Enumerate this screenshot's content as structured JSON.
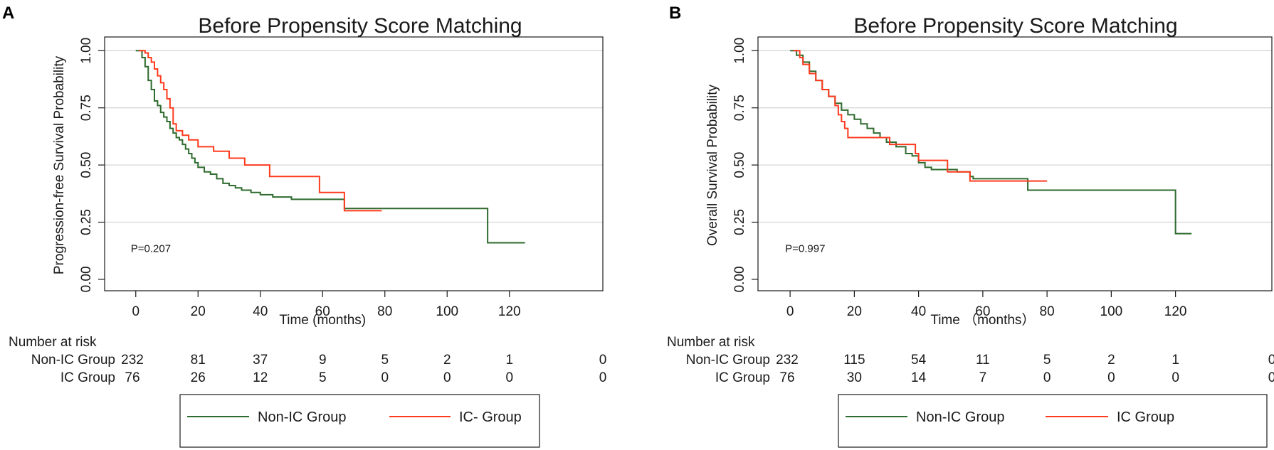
{
  "chart_data": [
    {
      "type": "line",
      "panel": "A",
      "title": "Before Propensity Score Matching",
      "xlabel": "Time (months)",
      "ylabel": "Progression-free Survival Probability",
      "xticks": [
        "0",
        "20",
        "40",
        "60",
        "80",
        "100",
        "120"
      ],
      "yticks": [
        "0.00",
        "0.25",
        "0.50",
        "0.75",
        "1.00"
      ],
      "xlim": [
        -10,
        150
      ],
      "ylim": [
        -0.05,
        1.06
      ],
      "pvalue": "P=0.207",
      "risk_title": "Number at risk",
      "risk_times": [
        0,
        20,
        40,
        60,
        80,
        100,
        120,
        150
      ],
      "risk_table": [
        {
          "label": "Non-IC Group",
          "values": [
            "232",
            "81",
            "37",
            "9",
            "5",
            "2",
            "1",
            "0"
          ]
        },
        {
          "label": "IC Group",
          "values": [
            "76",
            "26",
            "12",
            "5",
            "0",
            "0",
            "0",
            "0"
          ]
        }
      ],
      "legend": [
        "Non-IC Group",
        "IC- Group"
      ],
      "series": [
        {
          "name": "Non-IC Group",
          "color": "#2e6b2e",
          "points": [
            [
              0,
              1.0
            ],
            [
              1,
              1.0
            ],
            [
              2,
              0.97
            ],
            [
              3,
              0.93
            ],
            [
              4,
              0.87
            ],
            [
              5,
              0.83
            ],
            [
              6,
              0.78
            ],
            [
              7,
              0.76
            ],
            [
              8,
              0.73
            ],
            [
              9,
              0.71
            ],
            [
              10,
              0.69
            ],
            [
              11,
              0.66
            ],
            [
              12,
              0.64
            ],
            [
              13,
              0.62
            ],
            [
              14,
              0.61
            ],
            [
              15,
              0.59
            ],
            [
              16,
              0.57
            ],
            [
              17,
              0.55
            ],
            [
              18,
              0.53
            ],
            [
              19,
              0.51
            ],
            [
              20,
              0.49
            ],
            [
              22,
              0.47
            ],
            [
              24,
              0.46
            ],
            [
              26,
              0.44
            ],
            [
              28,
              0.42
            ],
            [
              30,
              0.41
            ],
            [
              32,
              0.4
            ],
            [
              34,
              0.39
            ],
            [
              37,
              0.38
            ],
            [
              40,
              0.37
            ],
            [
              44,
              0.36
            ],
            [
              50,
              0.35
            ],
            [
              58,
              0.35
            ],
            [
              66,
              0.35
            ],
            [
              67,
              0.31
            ],
            [
              80,
              0.31
            ],
            [
              113,
              0.31
            ],
            [
              113,
              0.16
            ],
            [
              125,
              0.16
            ]
          ]
        },
        {
          "name": "IC- Group",
          "color": "#ff3b1f",
          "points": [
            [
              1,
              1.0
            ],
            [
              3,
              0.99
            ],
            [
              4,
              0.97
            ],
            [
              5,
              0.95
            ],
            [
              6,
              0.92
            ],
            [
              7,
              0.89
            ],
            [
              8,
              0.86
            ],
            [
              9,
              0.83
            ],
            [
              10,
              0.79
            ],
            [
              11,
              0.75
            ],
            [
              12,
              0.68
            ],
            [
              13,
              0.65
            ],
            [
              15,
              0.63
            ],
            [
              17,
              0.61
            ],
            [
              20,
              0.58
            ],
            [
              25,
              0.56
            ],
            [
              30,
              0.53
            ],
            [
              35,
              0.5
            ],
            [
              43,
              0.45
            ],
            [
              59,
              0.45
            ],
            [
              59,
              0.38
            ],
            [
              67,
              0.38
            ],
            [
              67,
              0.3
            ],
            [
              79,
              0.3
            ]
          ]
        }
      ]
    },
    {
      "type": "line",
      "panel": "B",
      "title": "Before Propensity Score Matching",
      "xlabel": "Time （months）",
      "ylabel": "Overall Survival Probability",
      "xticks": [
        "0",
        "20",
        "40",
        "60",
        "80",
        "100",
        "120"
      ],
      "yticks": [
        "0.00",
        "0.25",
        "0.50",
        "0.75",
        "1.00"
      ],
      "xlim": [
        -10,
        150
      ],
      "ylim": [
        -0.05,
        1.06
      ],
      "pvalue": "P=0.997",
      "risk_title": "Number at risk",
      "risk_times": [
        0,
        20,
        40,
        60,
        80,
        100,
        120,
        150
      ],
      "risk_table": [
        {
          "label": "Non-IC Group",
          "values": [
            "232",
            "115",
            "54",
            "11",
            "5",
            "2",
            "1",
            "0"
          ]
        },
        {
          "label": "IC Group",
          "values": [
            "76",
            "30",
            "14",
            "7",
            "0",
            "0",
            "0",
            "0"
          ]
        }
      ],
      "legend": [
        "Non-IC Group",
        "IC Group"
      ],
      "series": [
        {
          "name": "Non-IC Group",
          "color": "#2e6b2e",
          "points": [
            [
              0,
              1.0
            ],
            [
              2,
              0.98
            ],
            [
              4,
              0.95
            ],
            [
              6,
              0.91
            ],
            [
              8,
              0.87
            ],
            [
              10,
              0.83
            ],
            [
              12,
              0.8
            ],
            [
              14,
              0.77
            ],
            [
              16,
              0.74
            ],
            [
              18,
              0.72
            ],
            [
              20,
              0.7
            ],
            [
              22,
              0.68
            ],
            [
              24,
              0.66
            ],
            [
              26,
              0.64
            ],
            [
              28,
              0.62
            ],
            [
              30,
              0.6
            ],
            [
              33,
              0.58
            ],
            [
              36,
              0.55
            ],
            [
              38,
              0.54
            ],
            [
              40,
              0.51
            ],
            [
              42,
              0.49
            ],
            [
              44,
              0.48
            ],
            [
              48,
              0.48
            ],
            [
              52,
              0.47
            ],
            [
              56,
              0.45
            ],
            [
              57,
              0.44
            ],
            [
              74,
              0.44
            ],
            [
              74,
              0.39
            ],
            [
              120,
              0.39
            ],
            [
              120,
              0.2
            ],
            [
              125,
              0.2
            ]
          ]
        },
        {
          "name": "IC Group",
          "color": "#ff3b1f",
          "points": [
            [
              1,
              1.0
            ],
            [
              3,
              0.97
            ],
            [
              4,
              0.94
            ],
            [
              6,
              0.9
            ],
            [
              8,
              0.87
            ],
            [
              10,
              0.83
            ],
            [
              12,
              0.8
            ],
            [
              14,
              0.76
            ],
            [
              15,
              0.72
            ],
            [
              16,
              0.69
            ],
            [
              17,
              0.66
            ],
            [
              18,
              0.62
            ],
            [
              27,
              0.62
            ],
            [
              31,
              0.59
            ],
            [
              38,
              0.59
            ],
            [
              39,
              0.55
            ],
            [
              40,
              0.52
            ],
            [
              48,
              0.52
            ],
            [
              49,
              0.47
            ],
            [
              55,
              0.47
            ],
            [
              56,
              0.43
            ],
            [
              80,
              0.43
            ]
          ]
        }
      ]
    }
  ]
}
